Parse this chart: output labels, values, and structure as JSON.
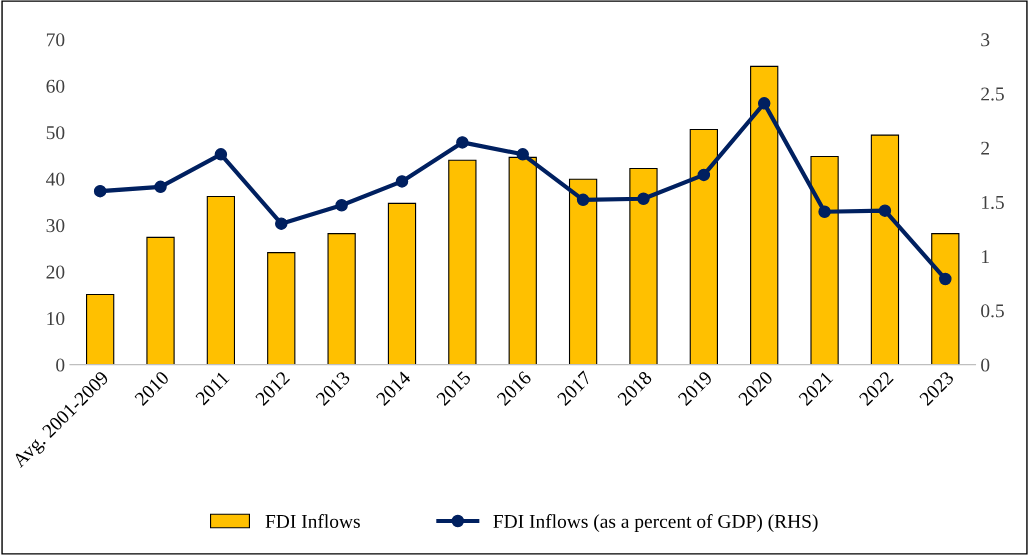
{
  "chart_data": {
    "type": "bar",
    "categories": [
      "Avg. 2001-2009",
      "2010",
      "2011",
      "2012",
      "2013",
      "2014",
      "2015",
      "2016",
      "2017",
      "2018",
      "2019",
      "2020",
      "2021",
      "2022",
      "2023"
    ],
    "series": [
      {
        "name": "FDI Inflows",
        "color": "#ffc000",
        "values": [
          15.1,
          27.4,
          36.2,
          24.1,
          28.2,
          34.7,
          44.0,
          44.6,
          39.9,
          42.2,
          50.6,
          64.2,
          44.8,
          49.4,
          28.2
        ]
      },
      {
        "name": "FDI Inflows (as a percent of GDP) (RHS)",
        "type": "line",
        "axis": "y2",
        "color": "#002060",
        "values": [
          1.6,
          1.64,
          1.94,
          1.3,
          1.47,
          1.69,
          2.05,
          1.94,
          1.52,
          1.53,
          1.75,
          2.41,
          1.41,
          1.42,
          0.79
        ]
      }
    ],
    "ylim": [
      0,
      70
    ],
    "yticks": [
      0,
      10,
      20,
      30,
      40,
      50,
      60,
      70
    ],
    "y2lim": [
      0,
      3
    ],
    "y2ticks": [
      0,
      0.5,
      1,
      1.5,
      2,
      2.5,
      3
    ],
    "marker": "circle",
    "line_style": "solid",
    "grid": false,
    "legend": "bottom"
  }
}
